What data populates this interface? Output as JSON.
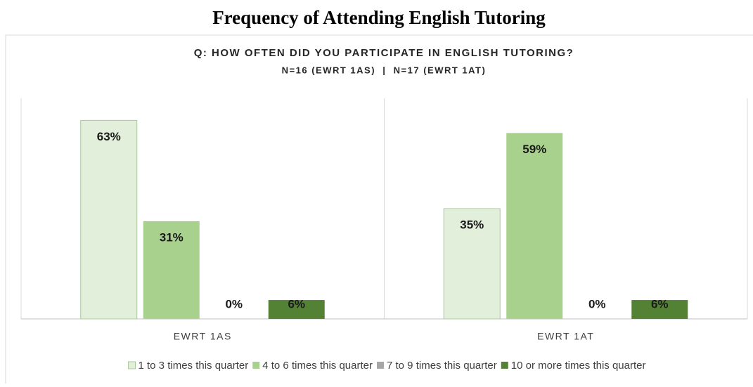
{
  "title": "Frequency of Attending English Tutoring",
  "chart_data": {
    "type": "bar",
    "title": "Q: HOW OFTEN DID YOU PARTICIPATE IN ENGLISH TUTORING?",
    "subtitle": "N=16 (EWRT 1AS)  |  N=17 (EWRT 1AT)",
    "categories": [
      "EWRT 1AS",
      "EWRT 1AT"
    ],
    "ylim": [
      0,
      70
    ],
    "series": [
      {
        "name": "1 to 3 times this quarter",
        "color": "#e2efda",
        "values": [
          63,
          35
        ],
        "value_labels": [
          "63%",
          "35%"
        ]
      },
      {
        "name": "4 to 6 times this quarter",
        "color": "#a9d18e",
        "values": [
          31,
          59
        ],
        "value_labels": [
          "31%",
          "59%"
        ]
      },
      {
        "name": "7 to 9 times this quarter",
        "color": "#a6a6a6",
        "values": [
          0,
          0
        ],
        "value_labels": [
          "0%",
          "0%"
        ]
      },
      {
        "name": "10 or more times this quarter",
        "color": "#548235",
        "values": [
          6,
          6
        ],
        "value_labels": [
          "6%",
          "6%"
        ]
      }
    ],
    "legend": "bottom"
  }
}
